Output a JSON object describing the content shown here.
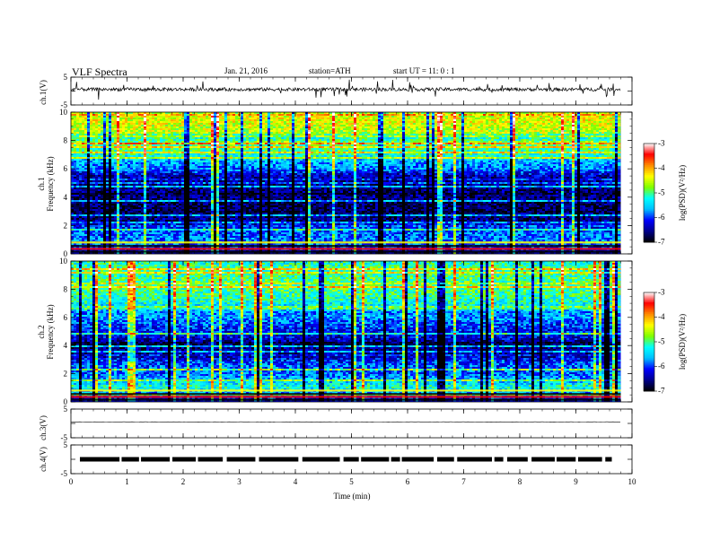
{
  "header": {
    "title": "VLF  Spectra",
    "date": "Jan. 21, 2016",
    "station": "station=ATH",
    "start": "start  UT =   11: 0  : 1"
  },
  "panels": {
    "ch1_wave_label": "ch.1(V)",
    "ch1_spec_label": "ch.1",
    "ch2_spec_label": "ch.2",
    "freq_label": "Frequency  (kHz)",
    "ch3_label": "ch.3(V)",
    "ch4_label": "ch.4(V)",
    "xlabel": "Time  (min)",
    "colorbar_label": "log(PSD)(V²/Hz)"
  },
  "colors": {
    "colormap": [
      "#000000",
      "#00008b",
      "#0000ff",
      "#00bfff",
      "#00ffff",
      "#7fff00",
      "#ffff00",
      "#ff8c00",
      "#ff0000",
      "#ffffff"
    ],
    "trace": "#000000"
  },
  "chart_data": {
    "type": "heatmap",
    "x": {
      "label": "Time  (min)",
      "range": [
        0,
        10
      ],
      "ticks": [
        0,
        1,
        2,
        3,
        4,
        5,
        6,
        7,
        8,
        9,
        10
      ],
      "data_end": 9.8
    },
    "wave_axes": {
      "ticks": [
        5,
        0,
        -5
      ],
      "tick_labels": [
        "5",
        "",
        "-5"
      ],
      "range": [
        -5,
        5
      ]
    },
    "freq_axis": {
      "label": "Frequency  (kHz)",
      "range": [
        0,
        10
      ],
      "ticks": [
        0,
        2,
        4,
        6,
        8,
        10
      ]
    },
    "colorbar": {
      "label": "log(PSD)(V²/Hz)",
      "range": [
        -7,
        -3
      ],
      "ticks": [
        -3,
        -4,
        -5,
        -6,
        -7
      ]
    },
    "spectrograms": [
      {
        "channel": "ch.1",
        "profile_khz": [
          0,
          0.5,
          1,
          1.5,
          2,
          2.5,
          3,
          3.5,
          4,
          4.5,
          5,
          5.5,
          6,
          6.5,
          7,
          7.5,
          8,
          8.5,
          9,
          9.5,
          10
        ],
        "profile_log_psd": [
          -6.6,
          -6.0,
          -5.8,
          -5.9,
          -6.2,
          -6.6,
          -6.7,
          -6.7,
          -6.6,
          -6.6,
          -6.5,
          -6.4,
          -5.8,
          -5.6,
          -5.2,
          -5.0,
          -4.8,
          -4.6,
          -4.5,
          -4.4,
          -4.6
        ]
      },
      {
        "channel": "ch.2",
        "profile_khz": [
          0,
          0.5,
          1,
          1.5,
          2,
          2.5,
          3,
          3.5,
          4,
          4.5,
          5,
          5.5,
          6,
          6.5,
          7,
          7.5,
          8,
          8.5,
          9,
          9.5,
          10
        ],
        "profile_log_psd": [
          -6.5,
          -5.8,
          -5.2,
          -5.6,
          -5.9,
          -5.9,
          -6.2,
          -6.5,
          -6.6,
          -6.3,
          -6.1,
          -6.0,
          -5.7,
          -5.5,
          -5.3,
          -5.1,
          -5.0,
          -5.0,
          -5.0,
          -5.0,
          -5.2
        ]
      }
    ],
    "ch1_waveform": {
      "baseline_v": 0.6,
      "range": [
        -5,
        5
      ]
    },
    "ch3_waveform": {
      "baseline_v": 0.5,
      "range": [
        -5,
        5
      ]
    },
    "ch4_waveform": {
      "baseline_v": 0.0,
      "range": [
        -5,
        5
      ]
    }
  }
}
